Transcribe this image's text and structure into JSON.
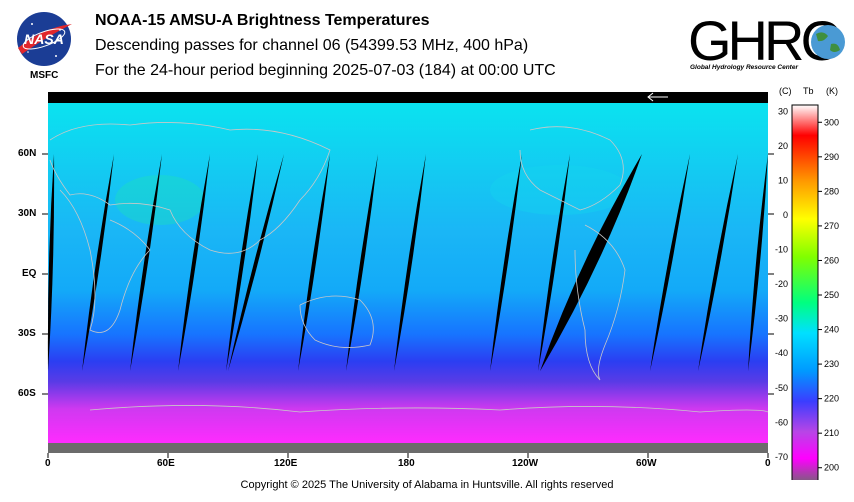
{
  "header": {
    "title": "NOAA-15 AMSU-A Brightness Temperatures",
    "line2": "Descending passes for channel 06 (54399.53 MHz, 400 hPa)",
    "line3": "For the 24-hour period beginning 2025-07-03 (184) at 00:00 UTC"
  },
  "logos": {
    "nasa_text": "NASA",
    "msfc_text": "MSFC",
    "ghrc_text": "GHRC",
    "ghrc_subtitle": "Global Hydrology Resource Center"
  },
  "footer": {
    "copyright": "Copyright © 2025 The University of Alabama in Huntsville.  All rights reserved"
  },
  "colorbar": {
    "header_c": "(C)",
    "header_tb": "Tb",
    "header_k": "(K)",
    "celsius_ticks": [
      "30",
      "20",
      "10",
      "0",
      "-10",
      "-20",
      "-30",
      "-40",
      "-50",
      "-60",
      "-70"
    ],
    "kelvin_ticks": [
      "300",
      "290",
      "280",
      "270",
      "260",
      "250",
      "240",
      "230",
      "220",
      "210",
      "200"
    ],
    "kelvin_range": [
      195,
      305
    ],
    "colors": [
      "#6b6b6b",
      "#ff00ff",
      "#b845e6",
      "#3b3dff",
      "#0099ff",
      "#00e0ff",
      "#00ff80",
      "#80ff00",
      "#ffff00",
      "#ff9900",
      "#ff0000",
      "#ffffff"
    ]
  },
  "chart_data": {
    "type": "heatmap",
    "title": "NOAA-15 AMSU-A Brightness Temperatures",
    "x_ticks": [
      "0",
      "60E",
      "120E",
      "180",
      "120W",
      "60W",
      "0"
    ],
    "y_ticks": [
      "60N",
      "30N",
      "EQ",
      "30S",
      "60S"
    ],
    "x_range_deg_lon": [
      0,
      360
    ],
    "y_range_deg_lat": [
      90,
      -90
    ],
    "grid": false,
    "colors": {
      "data_gap": "#000000",
      "coastline": "#c8c8c8"
    },
    "gap_swaths": [
      {
        "lon_top": 3,
        "lon_bottom": 0
      },
      {
        "lon_top": 33,
        "lon_bottom": 17
      },
      {
        "lon_top": 57,
        "lon_bottom": 41
      },
      {
        "lon_top": 81,
        "lon_bottom": 65
      },
      {
        "lon_top": 105,
        "lon_bottom": 89
      },
      {
        "lon_top": 118,
        "lon_bottom": 90
      },
      {
        "lon_top": 141,
        "lon_bottom": 125
      },
      {
        "lon_top": 165,
        "lon_bottom": 149
      },
      {
        "lon_top": 189,
        "lon_bottom": 173
      },
      {
        "lon_top": 237,
        "lon_bottom": 221
      },
      {
        "lon_top": 261,
        "lon_bottom": 245
      },
      {
        "lon_top": 297,
        "lon_bottom": 246
      },
      {
        "lon_top": 321,
        "lon_bottom": 301
      },
      {
        "lon_top": 345,
        "lon_bottom": 325
      },
      {
        "lon_top": 360,
        "lon_bottom": 350
      }
    ]
  }
}
